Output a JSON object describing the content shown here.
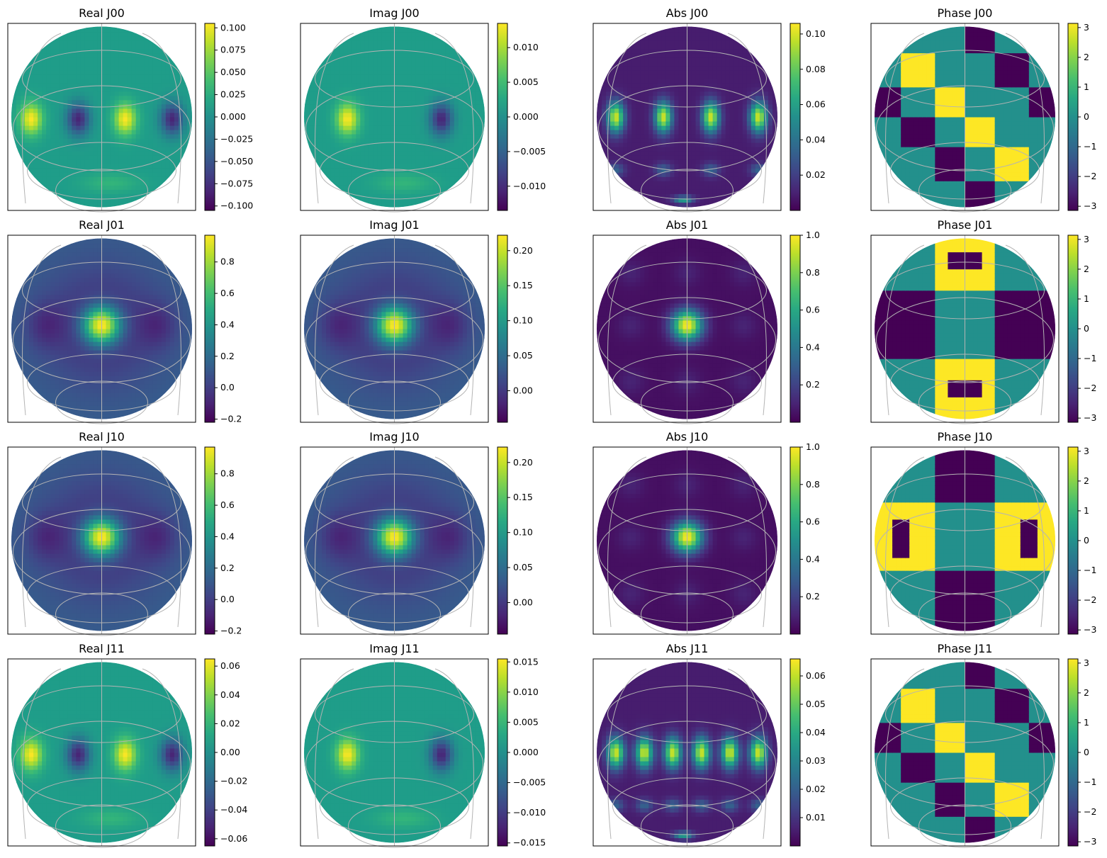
{
  "chart_data": [
    {
      "type": "heatmap",
      "title": "Real J00",
      "colormap": "viridis",
      "colorbar": {
        "ticks": [
          0.1,
          0.075,
          0.05,
          0.025,
          0,
          -0.025,
          -0.05,
          -0.075,
          -0.1
        ],
        "tick_labels": [
          "0.100",
          "0.075",
          "0.050",
          "0.025",
          "0.000",
          "−0.025",
          "−0.050",
          "−0.075",
          "−0.100"
        ],
        "range": [
          -0.105,
          0.105
        ]
      },
      "pattern": {
        "kind": "ring_side",
        "ridges": 4
      }
    },
    {
      "type": "heatmap",
      "title": "Imag J00",
      "colormap": "viridis",
      "colorbar": {
        "ticks": [
          0.01,
          0.005,
          0,
          -0.005,
          -0.01
        ],
        "tick_labels": [
          "0.010",
          "0.005",
          "0.000",
          "−0.005",
          "−0.010"
        ],
        "range": [
          -0.0135,
          0.0135
        ]
      },
      "pattern": {
        "kind": "ring_side",
        "ridges": 2
      }
    },
    {
      "type": "heatmap",
      "title": "Abs J00",
      "colormap": "viridis",
      "colorbar": {
        "ticks": [
          0.1,
          0.08,
          0.06,
          0.04,
          0.02
        ],
        "tick_labels": [
          "0.10",
          "0.08",
          "0.06",
          "0.04",
          "0.02"
        ],
        "range": [
          0,
          0.106
        ]
      },
      "pattern": {
        "kind": "grid_abs",
        "ridges": 4
      }
    },
    {
      "type": "heatmap",
      "title": "Phase J00",
      "colormap": "viridis",
      "colorbar": {
        "ticks": [
          3,
          2,
          1,
          0,
          -1,
          -2,
          -3
        ],
        "tick_labels": [
          "3",
          "2",
          "1",
          "0",
          "−1",
          "−2",
          "−3"
        ],
        "range": [
          -3.14,
          3.14
        ]
      },
      "pattern": {
        "kind": "phase_side"
      }
    },
    {
      "type": "heatmap",
      "title": "Real J01",
      "colormap": "viridis",
      "colorbar": {
        "ticks": [
          0.8,
          0.6,
          0.4,
          0.2,
          0,
          -0.2
        ],
        "tick_labels": [
          "0.8",
          "0.6",
          "0.4",
          "0.2",
          "0.0",
          "−0.2"
        ],
        "range": [
          -0.22,
          0.97
        ]
      },
      "pattern": {
        "kind": "center_peak"
      }
    },
    {
      "type": "heatmap",
      "title": "Imag J01",
      "colormap": "viridis",
      "colorbar": {
        "ticks": [
          0.2,
          0.15,
          0.1,
          0.05,
          0
        ],
        "tick_labels": [
          "0.20",
          "0.15",
          "0.10",
          "0.05",
          "0.00"
        ],
        "range": [
          -0.045,
          0.222
        ]
      },
      "pattern": {
        "kind": "center_peak"
      }
    },
    {
      "type": "heatmap",
      "title": "Abs J01",
      "colormap": "viridis",
      "colorbar": {
        "ticks": [
          1.0,
          0.8,
          0.6,
          0.4,
          0.2
        ],
        "tick_labels": [
          "1.0",
          "0.8",
          "0.6",
          "0.4",
          "0.2"
        ],
        "range": [
          0,
          1.0
        ]
      },
      "pattern": {
        "kind": "grid_center"
      }
    },
    {
      "type": "heatmap",
      "title": "Phase J01",
      "colormap": "viridis",
      "colorbar": {
        "ticks": [
          3,
          2,
          1,
          0,
          -1,
          -2,
          -3
        ],
        "tick_labels": [
          "3",
          "2",
          "1",
          "0",
          "−1",
          "−2",
          "−3"
        ],
        "range": [
          -3.14,
          3.14
        ]
      },
      "pattern": {
        "kind": "phase_cross_v"
      }
    },
    {
      "type": "heatmap",
      "title": "Real J10",
      "colormap": "viridis",
      "colorbar": {
        "ticks": [
          0.8,
          0.6,
          0.4,
          0.2,
          0,
          -0.2
        ],
        "tick_labels": [
          "0.8",
          "0.6",
          "0.4",
          "0.2",
          "0.0",
          "−0.2"
        ],
        "range": [
          -0.22,
          0.97
        ]
      },
      "pattern": {
        "kind": "center_peak"
      }
    },
    {
      "type": "heatmap",
      "title": "Imag J10",
      "colormap": "viridis",
      "colorbar": {
        "ticks": [
          0.2,
          0.15,
          0.1,
          0.05,
          0
        ],
        "tick_labels": [
          "0.20",
          "0.15",
          "0.10",
          "0.05",
          "0.00"
        ],
        "range": [
          -0.045,
          0.222
        ]
      },
      "pattern": {
        "kind": "center_peak"
      }
    },
    {
      "type": "heatmap",
      "title": "Abs J10",
      "colormap": "viridis",
      "colorbar": {
        "ticks": [
          1.0,
          0.8,
          0.6,
          0.4,
          0.2
        ],
        "tick_labels": [
          "1.0",
          "0.8",
          "0.6",
          "0.4",
          "0.2"
        ],
        "range": [
          0,
          1.0
        ]
      },
      "pattern": {
        "kind": "grid_center"
      }
    },
    {
      "type": "heatmap",
      "title": "Phase J10",
      "colormap": "viridis",
      "colorbar": {
        "ticks": [
          3,
          2,
          1,
          0,
          -1,
          -2,
          -3
        ],
        "tick_labels": [
          "3",
          "2",
          "1",
          "0",
          "−1",
          "−2",
          "−3"
        ],
        "range": [
          -3.14,
          3.14
        ]
      },
      "pattern": {
        "kind": "phase_cross_h"
      }
    },
    {
      "type": "heatmap",
      "title": "Real J11",
      "colormap": "viridis",
      "colorbar": {
        "ticks": [
          0.06,
          0.04,
          0.02,
          0,
          -0.02,
          -0.04,
          -0.06
        ],
        "tick_labels": [
          "0.06",
          "0.04",
          "0.02",
          "0.00",
          "−0.02",
          "−0.04",
          "−0.06"
        ],
        "range": [
          -0.065,
          0.065
        ]
      },
      "pattern": {
        "kind": "ring_side",
        "ridges": 4
      }
    },
    {
      "type": "heatmap",
      "title": "Imag J11",
      "colormap": "viridis",
      "colorbar": {
        "ticks": [
          0.015,
          0.01,
          0.005,
          0,
          -0.005,
          -0.01,
          -0.015
        ],
        "tick_labels": [
          "0.015",
          "0.010",
          "0.005",
          "0.000",
          "−0.005",
          "−0.010",
          "−0.015"
        ],
        "range": [
          -0.0155,
          0.0155
        ]
      },
      "pattern": {
        "kind": "ring_side",
        "ridges": 2
      }
    },
    {
      "type": "heatmap",
      "title": "Abs J11",
      "colormap": "viridis",
      "colorbar": {
        "ticks": [
          0.06,
          0.05,
          0.04,
          0.03,
          0.02,
          0.01
        ],
        "tick_labels": [
          "0.06",
          "0.05",
          "0.04",
          "0.03",
          "0.02",
          "0.01"
        ],
        "range": [
          0,
          0.066
        ]
      },
      "pattern": {
        "kind": "grid_abs",
        "ridges": 6
      }
    },
    {
      "type": "heatmap",
      "title": "Phase J11",
      "colormap": "viridis",
      "colorbar": {
        "ticks": [
          3,
          2,
          1,
          0,
          -1,
          -2,
          -3
        ],
        "tick_labels": [
          "3",
          "2",
          "1",
          "0",
          "−1",
          "−2",
          "−3"
        ],
        "range": [
          -3.14,
          3.14
        ]
      },
      "pattern": {
        "kind": "phase_side"
      }
    }
  ]
}
